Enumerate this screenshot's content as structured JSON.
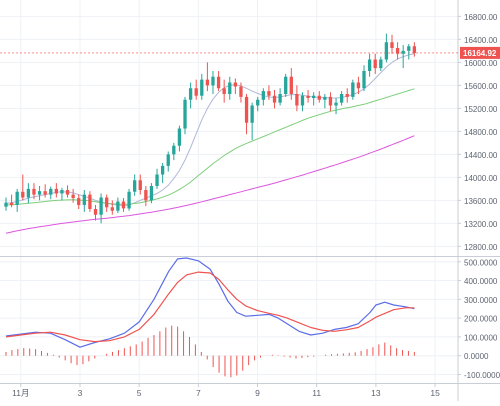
{
  "colors": {
    "background": "#ffffff",
    "grid": "#eef1f5",
    "axis_line": "#c9ced6",
    "tick_text": "#5d6470",
    "up": "#26a69a",
    "down": "#ef5350",
    "ma_short": "#b0b8d8",
    "ma_mid": "#7ccf7a",
    "ma_long": "#dd55dd",
    "price_label_bg": "#ef5350",
    "price_label_text": "#ffffff",
    "macd_line": "#5b6de8",
    "signal_line": "#ef5350",
    "hist_pos": "#ef5350",
    "hist_neg": "#ef5350"
  },
  "chart_data": [
    {
      "type": "candlestick",
      "title": "",
      "ylim": [
        12650,
        17050
      ],
      "y_ticks": [
        12800,
        13200,
        13600,
        14000,
        14400,
        14800,
        15200,
        15600,
        16000,
        16400,
        16800
      ],
      "y_tick_labels": [
        "12800.00",
        "13200.00",
        "13600.00",
        "14000.00",
        "14400.00",
        "14800.00",
        "15200.00",
        "15600.00",
        "16000.00",
        "16400.00",
        "16800.00"
      ],
      "last_price": 16164.92,
      "last_price_label": "16164.92",
      "candles": [
        [
          13490,
          13650,
          13420,
          13560
        ],
        [
          13560,
          13700,
          13480,
          13520
        ],
        [
          13520,
          13800,
          13400,
          13750
        ],
        [
          13750,
          14050,
          13600,
          13650
        ],
        [
          13650,
          13900,
          13550,
          13800
        ],
        [
          13800,
          13900,
          13620,
          13700
        ],
        [
          13700,
          13850,
          13600,
          13760
        ],
        [
          13760,
          13880,
          13650,
          13700
        ],
        [
          13700,
          13840,
          13620,
          13800
        ],
        [
          13800,
          13900,
          13650,
          13720
        ],
        [
          13720,
          13820,
          13600,
          13780
        ],
        [
          13780,
          13860,
          13650,
          13700
        ],
        [
          13700,
          13800,
          13560,
          13640
        ],
        [
          13640,
          13700,
          13450,
          13520
        ],
        [
          13520,
          13780,
          13400,
          13700
        ],
        [
          13700,
          13760,
          13400,
          13450
        ],
        [
          13450,
          13520,
          13250,
          13350
        ],
        [
          13350,
          13720,
          13200,
          13650
        ],
        [
          13650,
          13700,
          13400,
          13480
        ],
        [
          13480,
          13600,
          13350,
          13420
        ],
        [
          13420,
          13650,
          13380,
          13580
        ],
        [
          13580,
          13640,
          13400,
          13460
        ],
        [
          13460,
          13800,
          13420,
          13750
        ],
        [
          13750,
          14050,
          13680,
          13950
        ],
        [
          13950,
          14050,
          13700,
          13780
        ],
        [
          13780,
          13850,
          13500,
          13600
        ],
        [
          13600,
          13900,
          13550,
          13850
        ],
        [
          13850,
          14150,
          13800,
          14050
        ],
        [
          14050,
          14250,
          13900,
          14200
        ],
        [
          14200,
          14450,
          14100,
          14400
        ],
        [
          14400,
          14600,
          14300,
          14550
        ],
        [
          14550,
          14900,
          14450,
          14850
        ],
        [
          14850,
          15400,
          14750,
          15350
        ],
        [
          15350,
          15650,
          15200,
          15550
        ],
        [
          15550,
          15700,
          15350,
          15420
        ],
        [
          15420,
          15800,
          15350,
          15700
        ],
        [
          15700,
          16000,
          15500,
          15600
        ],
        [
          15600,
          15850,
          15450,
          15750
        ],
        [
          15750,
          15850,
          15500,
          15550
        ],
        [
          15550,
          15700,
          15300,
          15450
        ],
        [
          15450,
          15750,
          15350,
          15650
        ],
        [
          15650,
          15720,
          15450,
          15580
        ],
        [
          15580,
          15650,
          15300,
          15400
        ],
        [
          15400,
          15450,
          14750,
          14950
        ],
        [
          14950,
          15300,
          14650,
          15250
        ],
        [
          15250,
          15400,
          15150,
          15350
        ],
        [
          15350,
          15550,
          15250,
          15500
        ],
        [
          15500,
          15600,
          15350,
          15420
        ],
        [
          15420,
          15520,
          15200,
          15300
        ],
        [
          15300,
          15550,
          15250,
          15450
        ],
        [
          15450,
          15800,
          15400,
          15750
        ],
        [
          15750,
          15900,
          15350,
          15450
        ],
        [
          15450,
          15600,
          15150,
          15250
        ],
        [
          15250,
          15480,
          15150,
          15420
        ],
        [
          15420,
          15520,
          15300,
          15380
        ],
        [
          15380,
          15480,
          15250,
          15420
        ],
        [
          15420,
          15500,
          15300,
          15350
        ],
        [
          15350,
          15450,
          15200,
          15400
        ],
        [
          15400,
          15480,
          15150,
          15250
        ],
        [
          15250,
          15380,
          15100,
          15300
        ],
        [
          15300,
          15500,
          15250,
          15450
        ],
        [
          15450,
          15550,
          15300,
          15400
        ],
        [
          15400,
          15700,
          15350,
          15650
        ],
        [
          15650,
          15750,
          15450,
          15550
        ],
        [
          15550,
          15950,
          15500,
          15850
        ],
        [
          15850,
          16150,
          15750,
          16050
        ],
        [
          16050,
          16150,
          15800,
          15900
        ],
        [
          15900,
          16100,
          15850,
          16050
        ],
        [
          16050,
          16500,
          16000,
          16350
        ],
        [
          16350,
          16480,
          16150,
          16250
        ],
        [
          16250,
          16350,
          16050,
          16150
        ],
        [
          16150,
          16300,
          15900,
          16200
        ],
        [
          16200,
          16320,
          16050,
          16280
        ],
        [
          16280,
          16350,
          16100,
          16165
        ]
      ],
      "moving_averages": [
        {
          "values": [
            13550,
            13560,
            13580,
            13610,
            13640,
            13660,
            13680,
            13700,
            13720,
            13740,
            13750,
            13745,
            13730,
            13700,
            13670,
            13640,
            13600,
            13570,
            13550,
            13530,
            13520,
            13510,
            13520,
            13560,
            13600,
            13640,
            13680,
            13720,
            13780,
            13860,
            13980,
            14120,
            14300,
            14520,
            14760,
            15000,
            15200,
            15360,
            15480,
            15560,
            15600,
            15610,
            15590,
            15550,
            15500,
            15460,
            15420,
            15400,
            15390,
            15400,
            15420,
            15440,
            15440,
            15430,
            15410,
            15400,
            15390,
            15385,
            15380,
            15380,
            15390,
            15410,
            15440,
            15480,
            15540,
            15620,
            15720,
            15820,
            15920,
            16000,
            16060,
            16100,
            16130,
            16150
          ]
        },
        {
          "values": [
            13520,
            13525,
            13530,
            13540,
            13550,
            13560,
            13570,
            13580,
            13590,
            13600,
            13605,
            13608,
            13610,
            13605,
            13600,
            13590,
            13575,
            13560,
            13550,
            13540,
            13535,
            13530,
            13535,
            13545,
            13560,
            13580,
            13600,
            13625,
            13655,
            13690,
            13735,
            13790,
            13850,
            13920,
            14000,
            14080,
            14160,
            14240,
            14310,
            14380,
            14440,
            14500,
            14550,
            14590,
            14630,
            14670,
            14710,
            14750,
            14790,
            14830,
            14870,
            14910,
            14950,
            14990,
            15030,
            15060,
            15090,
            15120,
            15150,
            15170,
            15190,
            15210,
            15230,
            15250,
            15270,
            15300,
            15330,
            15360,
            15390,
            15420,
            15450,
            15480,
            15510,
            15540
          ]
        },
        {
          "values": [
            13030,
            13050,
            13070,
            13090,
            13110,
            13125,
            13140,
            13155,
            13170,
            13185,
            13200,
            13212,
            13224,
            13236,
            13248,
            13260,
            13270,
            13280,
            13290,
            13300,
            13312,
            13324,
            13336,
            13350,
            13365,
            13380,
            13395,
            13410,
            13428,
            13446,
            13465,
            13485,
            13505,
            13528,
            13552,
            13576,
            13600,
            13625,
            13650,
            13675,
            13700,
            13725,
            13750,
            13775,
            13800,
            13825,
            13850,
            13875,
            13900,
            13928,
            13956,
            13984,
            14012,
            14040,
            14070,
            14100,
            14130,
            14160,
            14190,
            14220,
            14252,
            14284,
            14316,
            14350,
            14384,
            14420,
            14456,
            14492,
            14530,
            14568,
            14606,
            14645,
            14685,
            14725
          ]
        }
      ]
    },
    {
      "type": "line",
      "title": "",
      "ylim": [
        -140,
        520
      ],
      "y_ticks": [
        -100,
        0,
        100,
        200,
        300,
        400,
        500
      ],
      "y_tick_labels": [
        "-100.0000",
        "0.0000",
        "100.0000",
        "200.0000",
        "300.0000",
        "400.0000",
        "500.0000"
      ],
      "x_ticks": [
        1,
        3,
        5,
        7,
        9,
        11,
        13,
        15
      ],
      "x_tick_labels": [
        "11月",
        "3",
        "5",
        "7",
        "9",
        "11",
        "13",
        "15"
      ],
      "x_range": [
        0.5,
        15.2
      ],
      "series": [
        {
          "x": [
            0.5,
            1,
            1.5,
            2,
            2.5,
            3,
            3.5,
            4,
            4.5,
            5,
            5.5,
            6,
            6.3,
            6.6,
            7,
            7.4,
            7.7,
            8,
            8.3,
            8.6,
            9,
            9.4,
            9.7,
            10,
            10.4,
            10.8,
            11.2,
            11.6,
            12,
            12.4,
            12.8,
            13,
            13.3,
            13.6,
            14,
            14.3
          ],
          "values": [
            105,
            115,
            125,
            120,
            85,
            45,
            70,
            90,
            120,
            180,
            300,
            450,
            515,
            520,
            505,
            460,
            380,
            290,
            230,
            210,
            215,
            220,
            200,
            170,
            130,
            110,
            120,
            140,
            150,
            170,
            230,
            270,
            285,
            270,
            260,
            250
          ]
        },
        {
          "x": [
            0.5,
            1,
            1.5,
            2,
            2.5,
            3,
            3.5,
            4,
            4.5,
            5,
            5.5,
            6,
            6.3,
            6.6,
            7,
            7.4,
            7.7,
            8,
            8.3,
            8.6,
            9,
            9.4,
            9.7,
            10,
            10.4,
            10.8,
            11.2,
            11.6,
            12,
            12.4,
            12.8,
            13,
            13.3,
            13.6,
            14,
            14.3
          ],
          "values": [
            100,
            110,
            120,
            125,
            110,
            85,
            75,
            80,
            100,
            140,
            220,
            330,
            390,
            430,
            445,
            440,
            405,
            350,
            300,
            265,
            240,
            225,
            215,
            200,
            175,
            150,
            135,
            130,
            138,
            150,
            185,
            205,
            225,
            245,
            255,
            255
          ]
        }
      ],
      "histogram": {
        "x": [
          0.5,
          0.7,
          0.9,
          1.1,
          1.3,
          1.5,
          1.7,
          1.9,
          2.1,
          2.3,
          2.5,
          2.7,
          2.9,
          3.1,
          3.3,
          3.5,
          3.7,
          3.9,
          4.1,
          4.3,
          4.5,
          4.7,
          4.9,
          5.1,
          5.3,
          5.5,
          5.7,
          5.9,
          6.1,
          6.3,
          6.5,
          6.7,
          6.9,
          7.1,
          7.3,
          7.5,
          7.7,
          7.9,
          8.1,
          8.3,
          8.5,
          8.7,
          8.9,
          9.1,
          9.3,
          9.5,
          9.7,
          9.9,
          10.1,
          10.3,
          10.5,
          10.7,
          10.9,
          11.1,
          11.3,
          11.5,
          11.7,
          11.9,
          12.1,
          12.3,
          12.5,
          12.7,
          12.9,
          13.1,
          13.3,
          13.5,
          13.7,
          13.9,
          14.1,
          14.3
        ],
        "values": [
          20,
          30,
          35,
          40,
          38,
          35,
          25,
          15,
          5,
          -10,
          -25,
          -40,
          -50,
          -45,
          -30,
          -15,
          0,
          10,
          20,
          30,
          40,
          50,
          60,
          75,
          95,
          110,
          130,
          150,
          160,
          155,
          130,
          100,
          60,
          20,
          -20,
          -60,
          -90,
          -110,
          -115,
          -105,
          -80,
          -50,
          -25,
          -10,
          0,
          5,
          2,
          -5,
          -10,
          -15,
          -12,
          -8,
          -5,
          0,
          5,
          8,
          10,
          12,
          15,
          18,
          25,
          35,
          45,
          60,
          70,
          55,
          40,
          30,
          25,
          20
        ]
      }
    }
  ]
}
